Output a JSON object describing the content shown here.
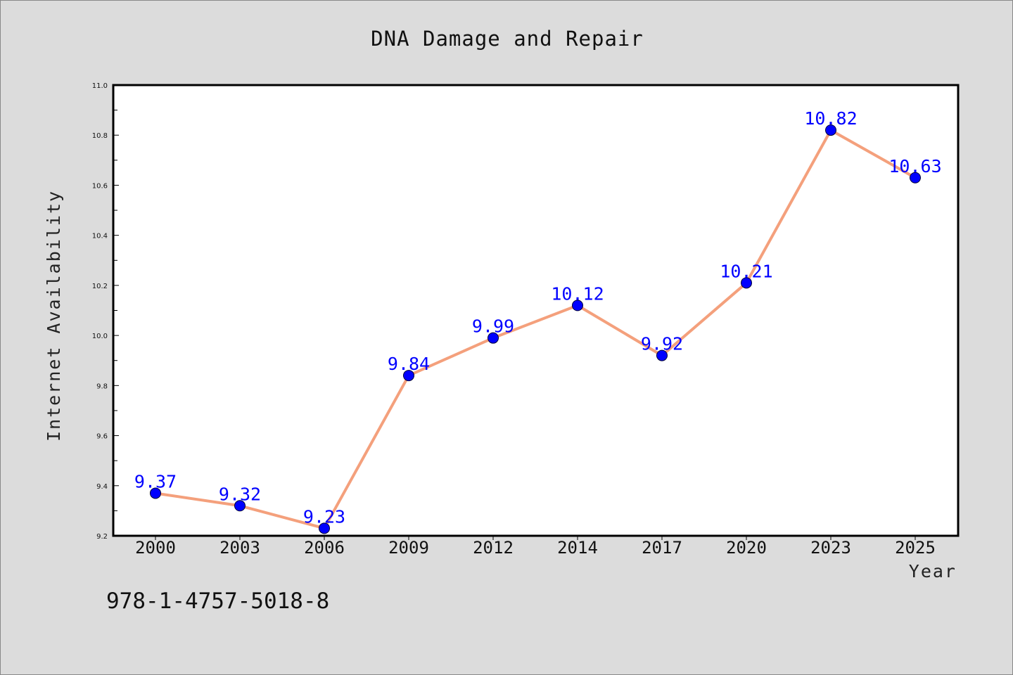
{
  "chart_data": {
    "type": "line",
    "title": "DNA Damage and Repair",
    "xlabel": "Year",
    "ylabel": "Internet Availability",
    "categories": [
      "2000",
      "2003",
      "2006",
      "2009",
      "2012",
      "2014",
      "2017",
      "2020",
      "2023",
      "2025"
    ],
    "series": [
      {
        "values": [
          9.37,
          9.32,
          9.23,
          9.84,
          9.99,
          10.12,
          9.92,
          10.21,
          10.82,
          10.63
        ],
        "line_color": "#f4a07c",
        "marker_color": "#0000ff"
      }
    ],
    "data_labels": [
      "9.37",
      "9.32",
      "9.23",
      "9.84",
      "9.99",
      "10.12",
      "9.92",
      "10.21",
      "10.82",
      "10.63"
    ],
    "ylim": [
      9.2,
      11.0
    ],
    "yticks": [
      "9.2",
      "9.4",
      "9.6",
      "9.8",
      "10.0",
      "10.2",
      "10.4",
      "10.6",
      "10.8",
      "11.0"
    ],
    "grid": false,
    "legend": "none"
  },
  "footer": {
    "isbn": "978-1-4757-5018-8"
  },
  "colors": {
    "background": "#dcdcdc",
    "plot_background": "#ffffff",
    "line": "#f4a07c",
    "marker": "#0000ff",
    "data_label": "#0000ff"
  }
}
